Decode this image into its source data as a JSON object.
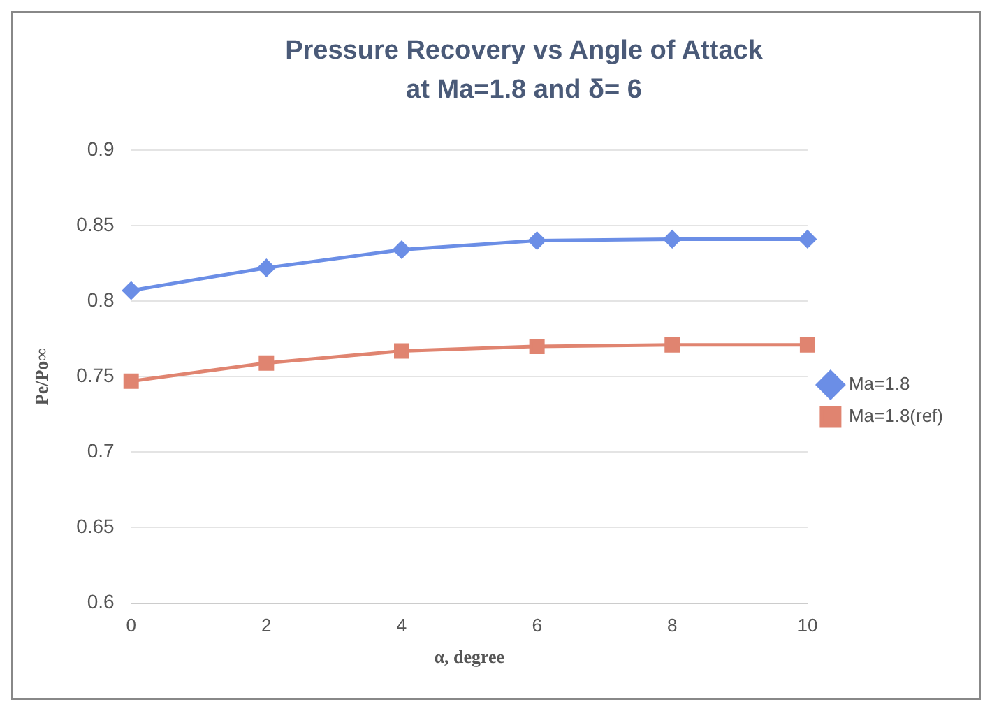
{
  "chart_data": {
    "type": "line",
    "title": "Pressure Recovery vs Angle of Attack at Ma=1.8 and δ= 6",
    "xlabel": "α, degree",
    "ylabel": "Pe/Po∞",
    "categories": [
      "0",
      "2",
      "4",
      "6",
      "8",
      "10"
    ],
    "series": [
      {
        "name": "Ma=1.8",
        "color": "#6b8ee6",
        "marker": "diamond",
        "values": [
          0.807,
          0.822,
          0.834,
          0.84,
          0.841,
          0.841
        ]
      },
      {
        "name": "Ma=1.8(ref)",
        "color": "#e08470",
        "marker": "square",
        "values": [
          0.747,
          0.759,
          0.767,
          0.77,
          0.771,
          0.771
        ]
      }
    ],
    "ylim": [
      0.6,
      0.9
    ],
    "yticks": [
      0.6,
      0.65,
      0.7,
      0.75,
      0.8,
      0.85,
      0.9
    ],
    "grid": "y",
    "legend": "right",
    "line_style": "solid"
  }
}
